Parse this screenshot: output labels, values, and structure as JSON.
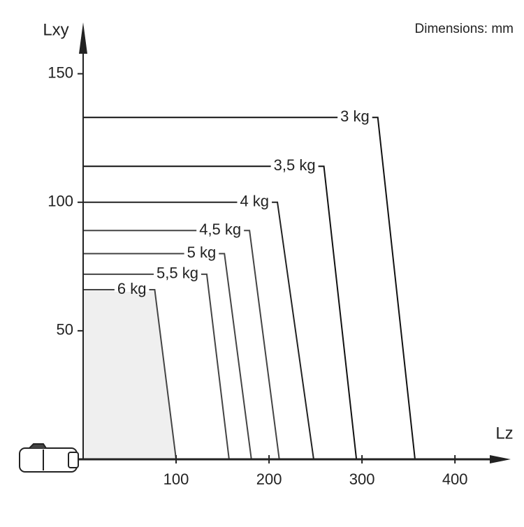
{
  "chart_data": {
    "type": "line",
    "annotation": "Dimensions: mm",
    "xlabel": "Lz",
    "ylabel": "Lxy",
    "xlim": [
      0,
      460
    ],
    "ylim": [
      0,
      170
    ],
    "xticks": [
      100,
      200,
      300,
      400
    ],
    "yticks": [
      50,
      100,
      150
    ],
    "series": [
      {
        "name": "3 kg",
        "color": "#111111",
        "x": [
          0,
          317,
          357
        ],
        "values": [
          133,
          133,
          0
        ]
      },
      {
        "name": "3,5 kg",
        "color": "#111111",
        "x": [
          0,
          259,
          294
        ],
        "values": [
          114,
          114,
          0
        ]
      },
      {
        "name": "4 kg",
        "color": "#222222",
        "x": [
          0,
          209,
          248
        ],
        "values": [
          100,
          100,
          0
        ]
      },
      {
        "name": "4,5 kg",
        "color": "#444444",
        "x": [
          0,
          179,
          211
        ],
        "values": [
          89,
          89,
          0
        ]
      },
      {
        "name": "5 kg",
        "color": "#444444",
        "x": [
          0,
          152,
          181
        ],
        "values": [
          80,
          80,
          0
        ]
      },
      {
        "name": "5,5 kg",
        "color": "#444444",
        "x": [
          0,
          133,
          157
        ],
        "values": [
          72,
          72,
          0
        ]
      },
      {
        "name": "6 kg",
        "color": "#444444",
        "fill": "#efefef",
        "x": [
          0,
          77,
          100
        ],
        "values": [
          66,
          66,
          0
        ]
      }
    ]
  }
}
